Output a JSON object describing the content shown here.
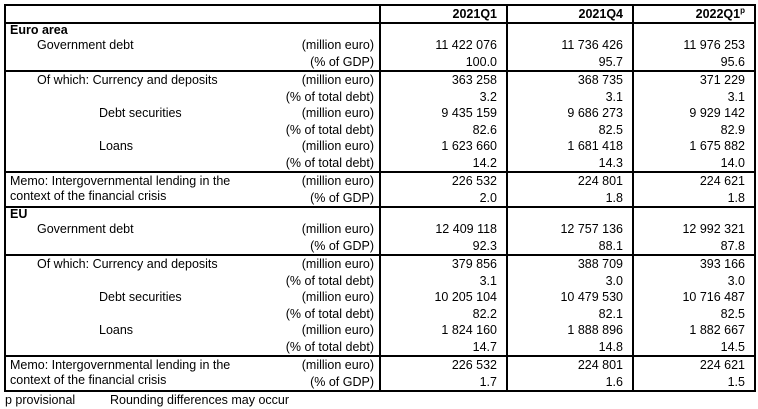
{
  "table": {
    "columns": [
      "2021Q1",
      "2021Q4",
      "2022Q1"
    ],
    "provisional_flag": "p",
    "blocks": [
      {
        "rows": [
          {
            "kind": "section",
            "label": "Euro area"
          },
          {
            "kind": "data",
            "label": "Government debt",
            "indent": "mid",
            "unit": "(million euro)",
            "values": [
              "11 422 076",
              "11 736 426",
              "11 976 253"
            ]
          },
          {
            "kind": "data",
            "label": "",
            "unit": "(% of GDP)",
            "values": [
              "100.0",
              "95.7",
              "95.6"
            ]
          }
        ]
      },
      {
        "rows": [
          {
            "kind": "data",
            "label": "Of which: Currency and deposits",
            "indent": "mid",
            "unit": "(million euro)",
            "values": [
              "363 258",
              "368 735",
              "371 229"
            ]
          },
          {
            "kind": "data",
            "label": "",
            "unit": "(% of total debt)",
            "values": [
              "3.2",
              "3.1",
              "3.1"
            ]
          },
          {
            "kind": "data",
            "label": "Debt securities",
            "indent": "deep",
            "unit": "(million euro)",
            "values": [
              "9 435 159",
              "9 686 273",
              "9 929 142"
            ]
          },
          {
            "kind": "data",
            "label": "",
            "unit": "(% of total debt)",
            "values": [
              "82.6",
              "82.5",
              "82.9"
            ]
          },
          {
            "kind": "data",
            "label": "Loans",
            "indent": "deep",
            "unit": "(million euro)",
            "values": [
              "1 623 660",
              "1 681 418",
              "1 675 882"
            ]
          },
          {
            "kind": "data",
            "label": "",
            "unit": "(% of total debt)",
            "values": [
              "14.2",
              "14.3",
              "14.0"
            ]
          }
        ]
      },
      {
        "memo_label": "Memo: Intergovernmental lending in the context of the financial crisis",
        "rows": [
          {
            "kind": "data",
            "unit": "(million euro)",
            "values": [
              "226 532",
              "224 801",
              "224 621"
            ]
          },
          {
            "kind": "data",
            "unit": "(% of GDP)",
            "values": [
              "2.0",
              "1.8",
              "1.8"
            ]
          }
        ]
      },
      {
        "rows": [
          {
            "kind": "section",
            "label": "EU"
          },
          {
            "kind": "data",
            "label": "Government debt",
            "indent": "mid",
            "unit": "(million euro)",
            "values": [
              "12 409 118",
              "12 757 136",
              "12 992 321"
            ]
          },
          {
            "kind": "data",
            "label": "",
            "unit": "(% of GDP)",
            "values": [
              "92.3",
              "88.1",
              "87.8"
            ]
          }
        ]
      },
      {
        "rows": [
          {
            "kind": "data",
            "label": "Of which: Currency and deposits",
            "indent": "mid",
            "unit": "(million euro)",
            "values": [
              "379 856",
              "388 709",
              "393 166"
            ]
          },
          {
            "kind": "data",
            "label": "",
            "unit": "(% of total debt)",
            "values": [
              "3.1",
              "3.0",
              "3.0"
            ]
          },
          {
            "kind": "data",
            "label": "Debt securities",
            "indent": "deep",
            "unit": "(million euro)",
            "values": [
              "10 205 104",
              "10 479 530",
              "10 716 487"
            ]
          },
          {
            "kind": "data",
            "label": "",
            "unit": "(% of total debt)",
            "values": [
              "82.2",
              "82.1",
              "82.5"
            ]
          },
          {
            "kind": "data",
            "label": "Loans",
            "indent": "deep",
            "unit": "(million euro)",
            "values": [
              "1 824 160",
              "1 888 896",
              "1 882 667"
            ]
          },
          {
            "kind": "data",
            "label": "",
            "unit": "(% of total debt)",
            "values": [
              "14.7",
              "14.8",
              "14.5"
            ]
          }
        ]
      },
      {
        "memo_label": "Memo: Intergovernmental lending in the context of the financial crisis",
        "rows": [
          {
            "kind": "data",
            "unit": "(million euro)",
            "values": [
              "226 532",
              "224 801",
              "224 621"
            ]
          },
          {
            "kind": "data",
            "unit": "(% of GDP)",
            "values": [
              "1.7",
              "1.6",
              "1.5"
            ]
          }
        ]
      }
    ]
  },
  "footer": {
    "provisional": "p provisional",
    "rounding": "Rounding differences may occur"
  }
}
